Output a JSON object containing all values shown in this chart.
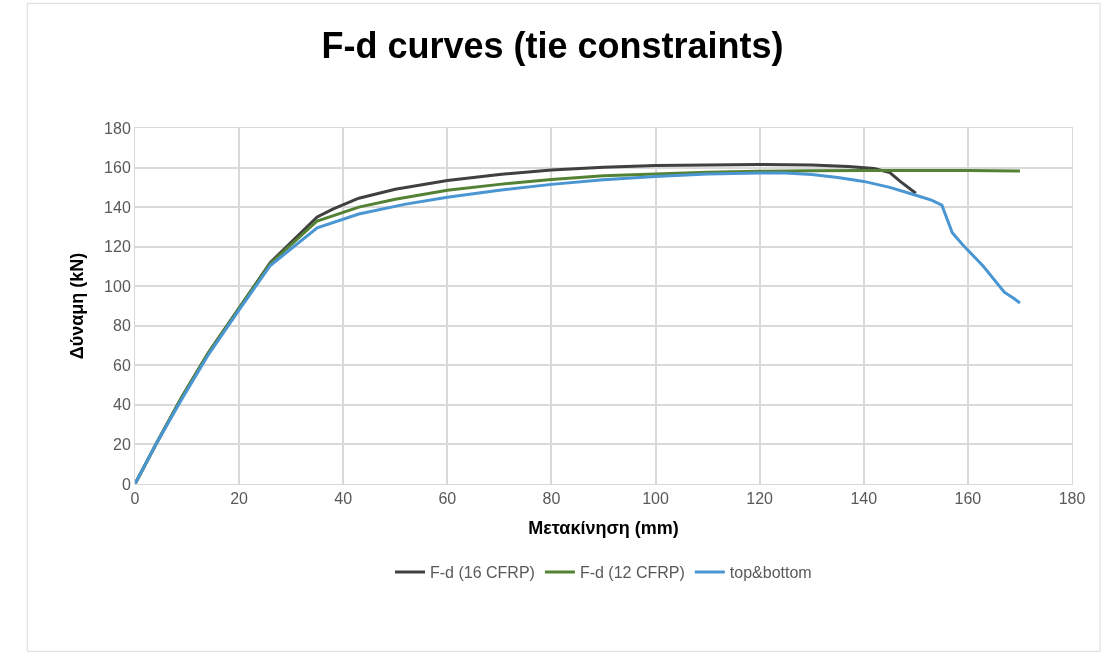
{
  "chart_data": {
    "type": "line",
    "title": "F-d curves (tie constraints)",
    "xlabel": "Μετακίνηση (mm)",
    "ylabel": "Δύναμη (kN)",
    "xlim": [
      0,
      180
    ],
    "xticks": [
      0,
      20,
      40,
      60,
      80,
      100,
      120,
      140,
      160,
      180
    ],
    "ylim": [
      0,
      180
    ],
    "yticks": [
      0,
      20,
      40,
      60,
      80,
      100,
      120,
      140,
      160,
      180
    ],
    "grid": true,
    "legend": "bottom",
    "marker": "none",
    "line_style": "solid",
    "series": [
      {
        "name": "F-d (16 CFRP)",
        "color": "#404040",
        "x": [
          0,
          4,
          9,
          14,
          20,
          26,
          35,
          38,
          43,
          50,
          60,
          70,
          80,
          90,
          100,
          110,
          120,
          130,
          137,
          142,
          145,
          147,
          150
        ],
        "values": [
          0,
          20,
          44,
          66,
          89,
          112,
          135,
          139,
          144.5,
          149,
          153.5,
          156.5,
          158.8,
          160.2,
          161,
          161.3,
          161.5,
          161.3,
          160.5,
          159.5,
          157.5,
          153,
          147
        ]
      },
      {
        "name": "F-d (12 CFRP)",
        "color": "#548235",
        "x": [
          0,
          4,
          9,
          14,
          20,
          26,
          35,
          43,
          50,
          60,
          70,
          80,
          90,
          100,
          110,
          120,
          130,
          140,
          150,
          160,
          170
        ],
        "values": [
          0,
          20,
          44,
          66,
          89,
          111.5,
          133,
          140,
          144,
          148.5,
          151.5,
          154,
          155.8,
          156.8,
          157.6,
          158.1,
          158.4,
          158.5,
          158.5,
          158.5,
          158.3
        ]
      },
      {
        "name": "top&bottom",
        "color": "#4a96d2",
        "x": [
          0,
          4,
          9,
          14,
          20,
          26,
          35,
          43,
          52,
          60,
          70,
          80,
          90,
          100,
          110,
          120,
          125,
          130,
          135,
          140,
          145,
          150,
          153,
          155,
          157,
          159,
          163,
          167,
          169,
          170
        ],
        "values": [
          0,
          20,
          43,
          65,
          88,
          110.5,
          129.5,
          136.5,
          141.5,
          145,
          148.5,
          151.5,
          153.8,
          155.5,
          156.7,
          157.3,
          157.3,
          156.5,
          155,
          153,
          150,
          146,
          143.5,
          141,
          127,
          121,
          110,
          97,
          93.5,
          91.5
        ]
      }
    ]
  }
}
